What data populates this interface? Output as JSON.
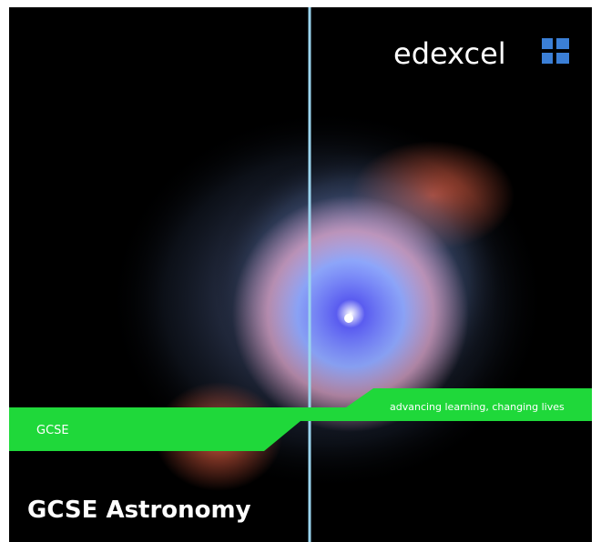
{
  "logo": {
    "text": "edexcel"
  },
  "tagline": "advancing learning, changing lives",
  "band_label": "GCSE",
  "title": "GCSE Astronomy"
}
